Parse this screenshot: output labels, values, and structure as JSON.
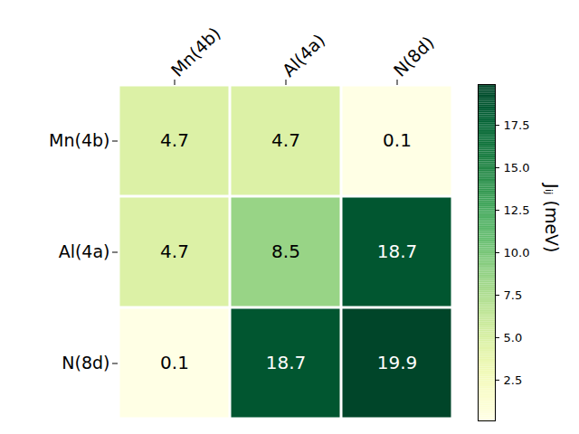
{
  "chart_data": {
    "type": "heatmap",
    "x_categories": [
      "Mn(4b)",
      "Al(4a)",
      "N(8d)"
    ],
    "y_categories": [
      "Mn(4b)",
      "Al(4a)",
      "N(8d)"
    ],
    "cells": [
      [
        4.7,
        4.7,
        0.1
      ],
      [
        4.7,
        8.5,
        18.7
      ],
      [
        0.1,
        18.7,
        19.9
      ]
    ],
    "data_labels": true,
    "color": "YlGn",
    "colorbar": {
      "label": "Jᵢⱼ (meV)",
      "range": [
        0.1,
        19.9
      ],
      "ticks": [
        2.5,
        {
          "value": 5,
          "label": "5.0"
        },
        7.5,
        {
          "value": 10,
          "label": "10.0"
        },
        12.5,
        {
          "value": 15,
          "label": "15.0"
        },
        17.5
      ]
    }
  }
}
